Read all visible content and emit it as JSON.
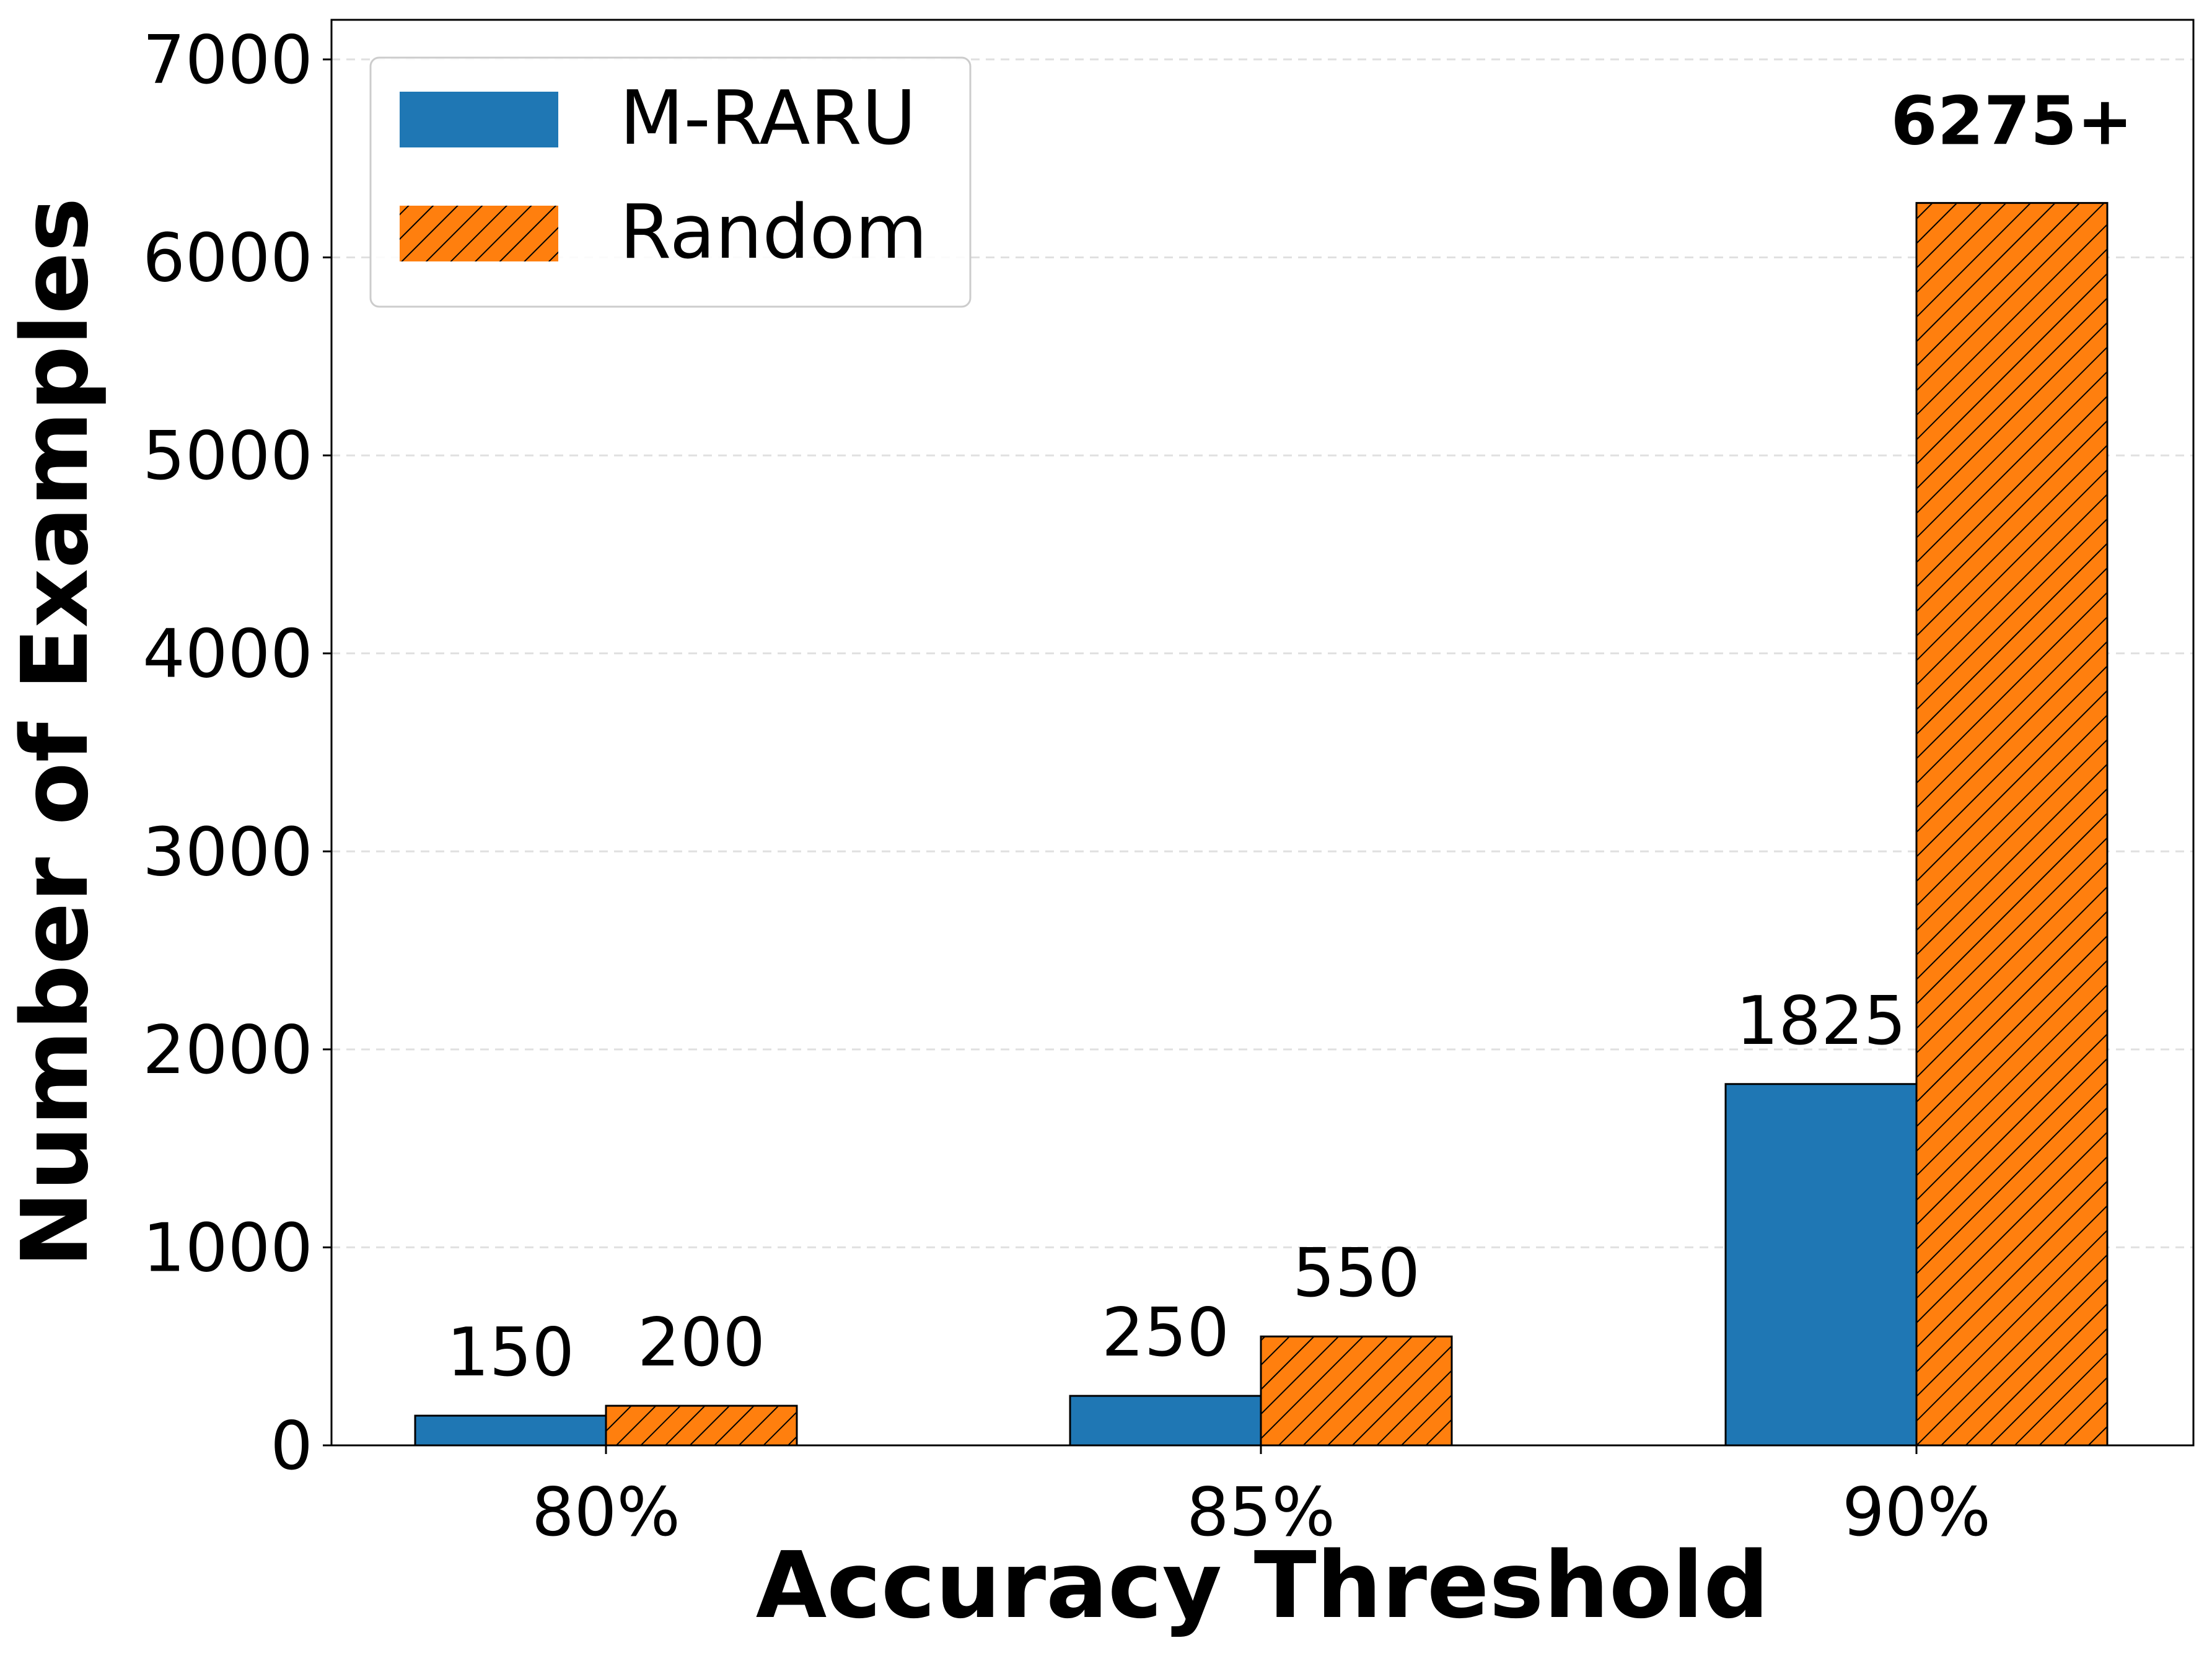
{
  "chart_data": {
    "type": "bar",
    "title": "",
    "xlabel": "Accuracy Threshold",
    "ylabel": "Number of Examples",
    "categories": [
      "80%",
      "85%",
      "90%"
    ],
    "series": [
      {
        "name": "M-RARU",
        "values": [
          150,
          250,
          1825
        ],
        "color": "#1f77b4",
        "hatch": false
      },
      {
        "name": "Random",
        "values": [
          200,
          550,
          6275
        ],
        "color": "#ff7f0e",
        "hatch": true
      }
    ],
    "data_labels": [
      [
        "150",
        "250",
        "1825"
      ],
      [
        "200",
        "550",
        "6275+"
      ]
    ],
    "bold_labels": [
      [
        false,
        false,
        false
      ],
      [
        false,
        false,
        true
      ]
    ],
    "ylim": [
      0,
      7200
    ],
    "yticks": [
      0,
      1000,
      2000,
      3000,
      4000,
      5000,
      6000,
      7000
    ],
    "ytick_labels": [
      "0",
      "1000",
      "2000",
      "3000",
      "4000",
      "5000",
      "6000",
      "7000"
    ],
    "grid": "horizontal dashed",
    "legend_position": "top-left",
    "edge_color": "#000000"
  }
}
